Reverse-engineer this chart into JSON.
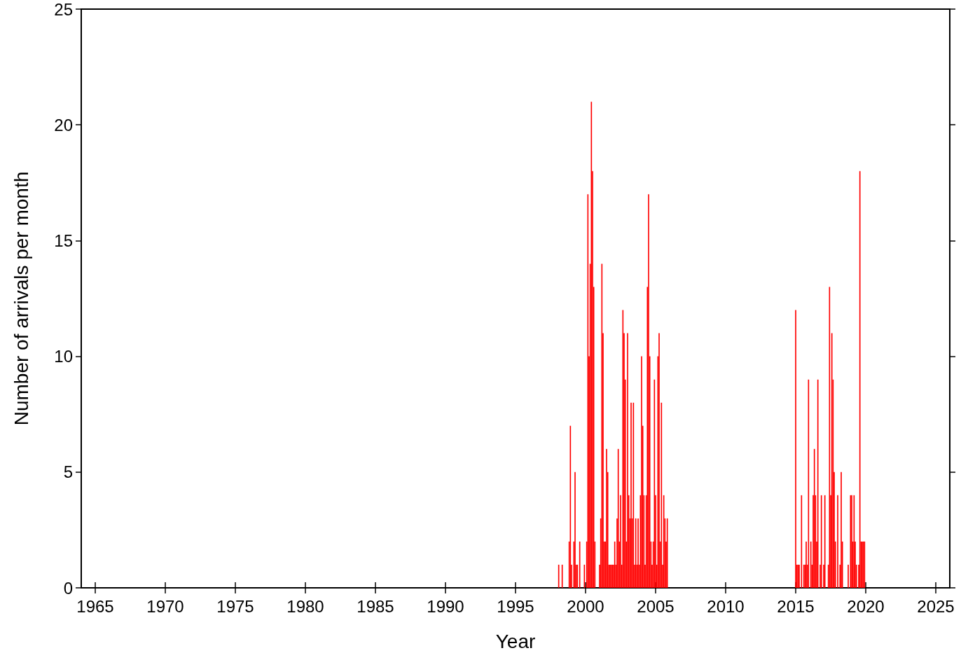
{
  "chart_data": {
    "type": "bar",
    "xlabel": "Year",
    "ylabel": "Number of arrivals per month",
    "x": [
      "1998-02",
      "1998-05",
      "1998-11",
      "1998-12",
      "1999-01",
      "1999-03",
      "1999-04",
      "1999-05",
      "1999-06",
      "1999-08",
      "1999-12",
      "2000-02",
      "2000-03",
      "2000-04",
      "2000-05",
      "2000-06",
      "2000-07",
      "2000-08",
      "2000-09",
      "2001-01",
      "2001-02",
      "2001-03",
      "2001-04",
      "2001-05",
      "2001-06",
      "2001-07",
      "2001-08",
      "2001-09",
      "2001-10",
      "2001-11",
      "2001-12",
      "2002-01",
      "2002-02",
      "2002-03",
      "2002-04",
      "2002-05",
      "2002-06",
      "2002-07",
      "2002-08",
      "2002-09",
      "2002-10",
      "2002-11",
      "2002-12",
      "2003-01",
      "2003-02",
      "2003-03",
      "2003-04",
      "2003-05",
      "2003-06",
      "2003-07",
      "2003-08",
      "2003-09",
      "2003-10",
      "2003-11",
      "2003-12",
      "2004-01",
      "2004-02",
      "2004-03",
      "2004-04",
      "2004-05",
      "2004-06",
      "2004-07",
      "2004-08",
      "2004-09",
      "2004-10",
      "2004-11",
      "2004-12",
      "2005-01",
      "2005-02",
      "2005-03",
      "2005-04",
      "2005-05",
      "2005-06",
      "2005-07",
      "2005-08",
      "2005-09",
      "2005-10",
      "2005-11",
      "2015-01",
      "2015-02",
      "2015-03",
      "2015-04",
      "2015-06",
      "2015-08",
      "2015-09",
      "2015-10",
      "2015-11",
      "2015-12",
      "2016-02",
      "2016-03",
      "2016-04",
      "2016-05",
      "2016-06",
      "2016-07",
      "2016-08",
      "2016-10",
      "2016-11",
      "2017-01",
      "2017-02",
      "2017-05",
      "2017-06",
      "2017-07",
      "2017-08",
      "2017-09",
      "2017-10",
      "2017-11",
      "2018-01",
      "2018-03",
      "2018-04",
      "2018-05",
      "2018-10",
      "2018-12",
      "2019-01",
      "2019-02",
      "2019-03",
      "2019-04",
      "2019-05",
      "2019-07",
      "2019-08",
      "2019-09",
      "2019-10",
      "2019-11",
      "2019-12"
    ],
    "values": [
      1,
      1,
      2,
      7,
      1,
      2,
      5,
      1,
      1,
      2,
      1,
      2,
      17,
      10,
      14,
      21,
      18,
      13,
      2,
      1,
      3,
      14,
      11,
      2,
      2,
      6,
      5,
      1,
      1,
      1,
      1,
      1,
      2,
      1,
      3,
      6,
      2,
      4,
      1,
      12,
      11,
      9,
      2,
      11,
      4,
      3,
      8,
      3,
      8,
      1,
      3,
      1,
      3,
      1,
      4,
      10,
      7,
      4,
      1,
      4,
      13,
      17,
      10,
      2,
      1,
      2,
      9,
      4,
      1,
      10,
      11,
      2,
      8,
      1,
      4,
      3,
      2,
      3,
      12,
      1,
      1,
      1,
      4,
      1,
      1,
      2,
      1,
      9,
      2,
      1,
      4,
      6,
      4,
      2,
      9,
      1,
      4,
      1,
      4,
      1,
      13,
      4,
      11,
      9,
      5,
      2,
      4,
      1,
      5,
      2,
      1,
      4,
      4,
      2,
      4,
      2,
      1,
      1,
      18,
      2,
      2,
      2,
      2
    ],
    "color": "#ff0000",
    "xlim": [
      "1964-01",
      "2026-01"
    ],
    "xticks": [
      "1965",
      "1970",
      "1975",
      "1980",
      "1985",
      "1990",
      "1995",
      "2000",
      "2005",
      "2010",
      "2015",
      "2020",
      "2025"
    ],
    "ylim": [
      0,
      25
    ],
    "yticks": [
      0,
      5,
      10,
      15,
      20,
      25
    ],
    "grid": false
  }
}
